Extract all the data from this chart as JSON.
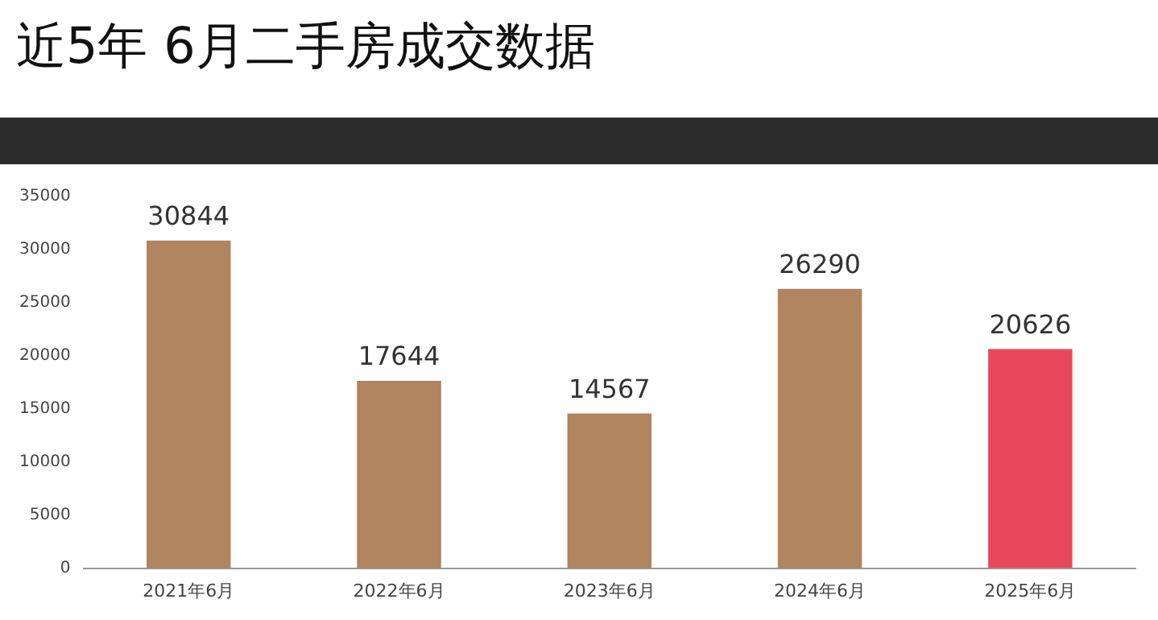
{
  "chart_data": {
    "type": "bar",
    "title": "近5年 6月二手房成交数据",
    "categories": [
      "2021年6月",
      "2022年6月",
      "2023年6月",
      "2024年6月",
      "2025年6月"
    ],
    "values": [
      30844,
      17644,
      14567,
      26290,
      20626
    ],
    "colors": [
      "#b0845e",
      "#b0845e",
      "#b0845e",
      "#b0845e",
      "#e8485c"
    ],
    "ylim": [
      0,
      35000
    ],
    "yticks": [
      0,
      5000,
      10000,
      15000,
      20000,
      25000,
      30000,
      35000
    ],
    "grid": false,
    "legend": false,
    "data_labels": true
  }
}
